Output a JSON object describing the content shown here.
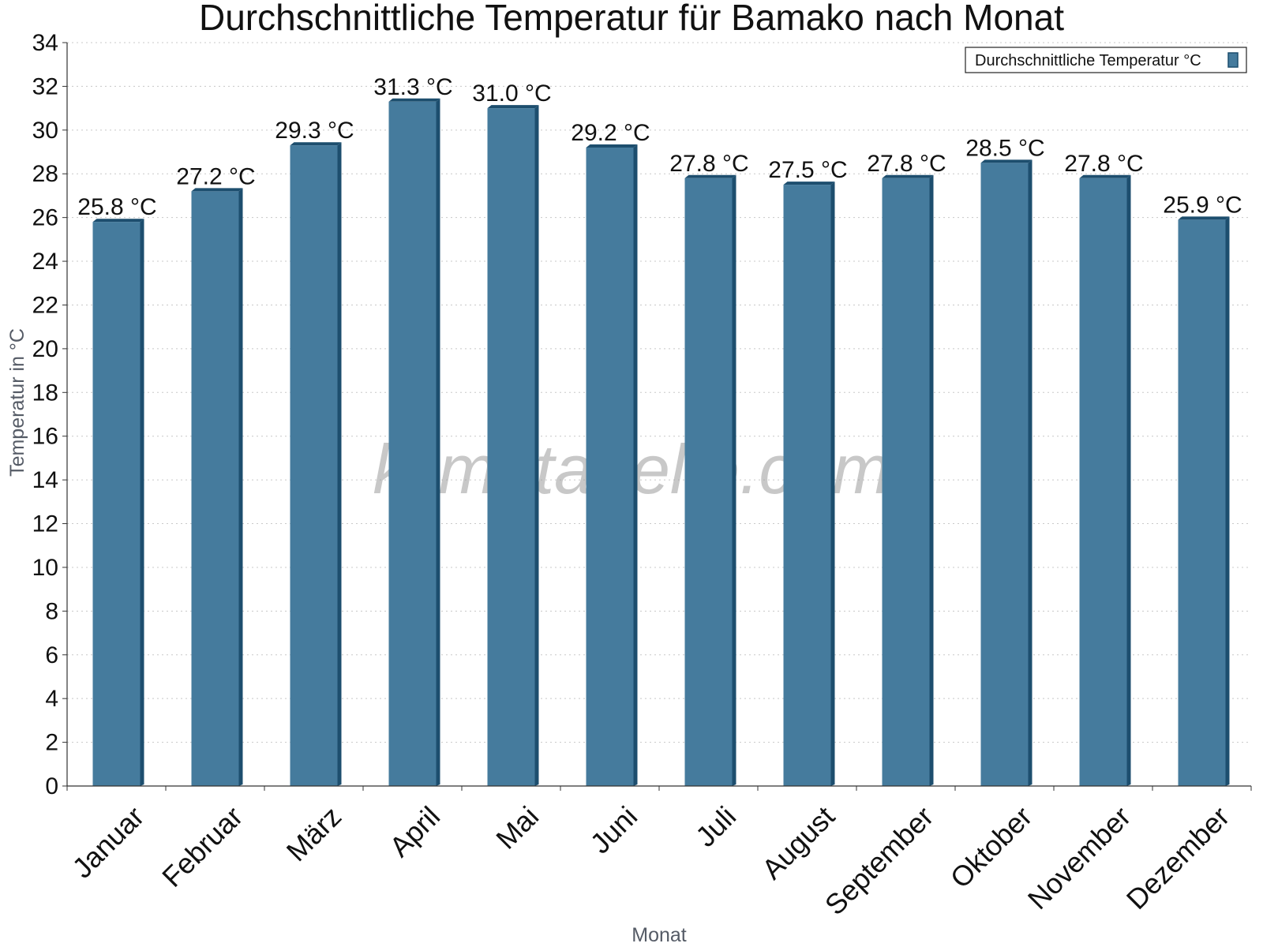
{
  "chart_data": {
    "type": "bar",
    "title": "Durchschnittliche Temperatur für Bamako nach Monat",
    "xlabel": "Monat",
    "ylabel": "Temperatur in °C",
    "categories": [
      "Januar",
      "Februar",
      "März",
      "April",
      "Mai",
      "Juni",
      "Juli",
      "August",
      "September",
      "Oktober",
      "November",
      "Dezember"
    ],
    "series": [
      {
        "name": "Durchschnittliche Temperatur °C",
        "values": [
          25.8,
          27.2,
          29.3,
          31.3,
          31.0,
          29.2,
          27.8,
          27.5,
          27.8,
          28.5,
          27.8,
          25.9
        ],
        "labels": [
          "25.8 °C",
          "27.2 °C",
          "29.3 °C",
          "31.3 °C",
          "31.0 °C",
          "29.2 °C",
          "27.8 °C",
          "27.5 °C",
          "27.8 °C",
          "28.5 °C",
          "27.8 °C",
          "25.9 °C"
        ],
        "color": "#457b9d",
        "edge_color": "#1d4e6e"
      }
    ],
    "ylim": [
      0,
      34
    ],
    "yticks": [
      "0",
      "2",
      "4",
      "6",
      "8",
      "10",
      "12",
      "14",
      "16",
      "18",
      "20",
      "22",
      "24",
      "26",
      "28",
      "30",
      "32",
      "34"
    ],
    "grid": true,
    "legend_position": "top-right"
  },
  "watermark": "klimatabelle.com"
}
